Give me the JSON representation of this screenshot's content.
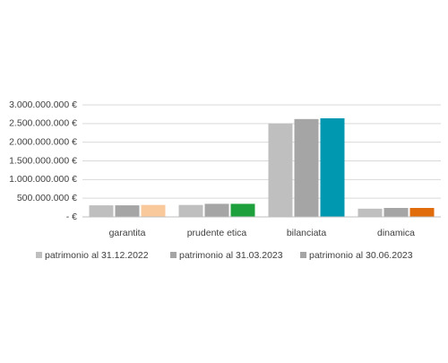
{
  "chart_data": {
    "type": "bar",
    "categories": [
      "garantita",
      "prudente etica",
      "bilanciata",
      "dinamica"
    ],
    "series": [
      {
        "name": "patrimonio al 31.12.2022",
        "color": "#bfbfbf",
        "values": [
          310000000,
          320000000,
          2500000000,
          220000000
        ]
      },
      {
        "name": "patrimonio al 31.03.2023",
        "color": "#a5a5a5",
        "values": [
          310000000,
          350000000,
          2620000000,
          240000000
        ]
      },
      {
        "name": "patrimonio al 30.06.2023",
        "color": "#a5a5a5",
        "point_colors": [
          "#f9c89b",
          "#1ea03c",
          "#0098b0",
          "#e06c0c"
        ],
        "values": [
          320000000,
          350000000,
          2640000000,
          240000000
        ]
      }
    ],
    "ylim": [
      0,
      3000000000
    ],
    "yticks": [
      {
        "value": 0,
        "label": "-  €"
      },
      {
        "value": 500000000,
        "label": "500.000.000 €"
      },
      {
        "value": 1000000000,
        "label": "1.000.000.000 €"
      },
      {
        "value": 1500000000,
        "label": "1.500.000.000 €"
      },
      {
        "value": 2000000000,
        "label": "2.000.000.000 €"
      },
      {
        "value": 2500000000,
        "label": "2.500.000.000 €"
      },
      {
        "value": 3000000000,
        "label": "3.000.000.000 €"
      }
    ],
    "grid": true,
    "legend": "bottom"
  }
}
